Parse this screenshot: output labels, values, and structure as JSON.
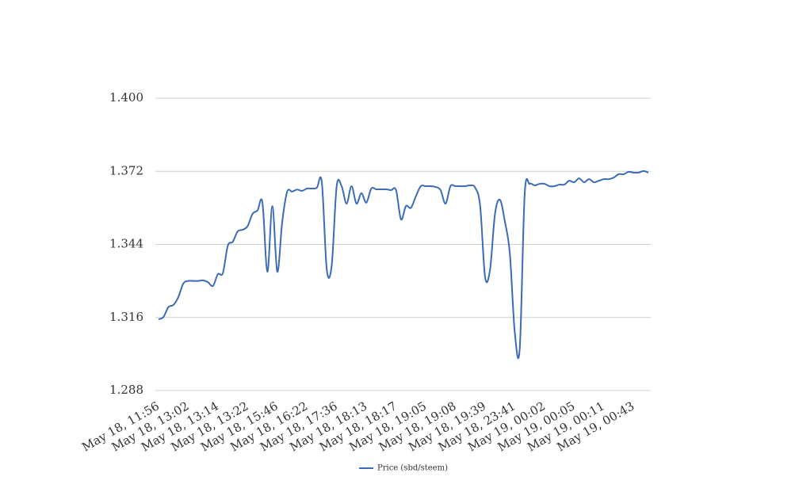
{
  "chart_data": {
    "type": "line",
    "categories": [
      "May 18, 11:56",
      null,
      null,
      null,
      null,
      null,
      "May 18, 13:02",
      null,
      null,
      null,
      null,
      null,
      "May 18, 13:14",
      null,
      null,
      null,
      null,
      null,
      "May 18, 13:22",
      null,
      null,
      null,
      null,
      null,
      "May 18, 15:46",
      null,
      null,
      null,
      null,
      null,
      "May 18, 16:22",
      null,
      null,
      null,
      null,
      null,
      "May 18, 17:36",
      null,
      null,
      null,
      null,
      null,
      "May 18, 18:13",
      null,
      null,
      null,
      null,
      null,
      "May 18, 18:17",
      null,
      null,
      null,
      null,
      null,
      "May 18, 19:05",
      null,
      null,
      null,
      null,
      null,
      "May 18, 19:08",
      null,
      null,
      null,
      null,
      null,
      "May 18, 19:39",
      null,
      null,
      null,
      null,
      null,
      "May 18, 23:41",
      null,
      null,
      null,
      null,
      null,
      "May 19, 00:02",
      null,
      null,
      null,
      null,
      null,
      "May 19, 00:05",
      null,
      null,
      null,
      null,
      null,
      "May 19, 00:11",
      null,
      null,
      null,
      null,
      null,
      "May 19, 00:43",
      null,
      null,
      null
    ],
    "series": [
      {
        "name": "Price (sbd/steem)",
        "color": "#3c6bb8",
        "values": [
          1.3153,
          1.3162,
          1.32,
          1.3208,
          1.3238,
          1.329,
          1.33,
          1.33,
          1.33,
          1.3302,
          1.3295,
          1.3281,
          1.3326,
          1.333,
          1.3435,
          1.345,
          1.349,
          1.3496,
          1.351,
          1.3557,
          1.357,
          1.36,
          1.3335,
          1.3587,
          1.3335,
          1.3527,
          1.3642,
          1.3642,
          1.365,
          1.3645,
          1.3654,
          1.3654,
          1.3657,
          1.3678,
          1.3344,
          1.336,
          1.3663,
          1.3663,
          1.3596,
          1.3663,
          1.3596,
          1.3636,
          1.36,
          1.3654,
          1.3651,
          1.3651,
          1.3651,
          1.3648,
          1.3648,
          1.3536,
          1.3587,
          1.358,
          1.3624,
          1.3663,
          1.3663,
          1.3663,
          1.366,
          1.3648,
          1.3596,
          1.3663,
          1.3663,
          1.3663,
          1.3663,
          1.3666,
          1.3657,
          1.3587,
          1.3314,
          1.3344,
          1.3557,
          1.3611,
          1.3527,
          1.3405,
          1.3102,
          1.3041,
          1.3633,
          1.3672,
          1.3666,
          1.3672,
          1.3672,
          1.3663,
          1.3663,
          1.3669,
          1.3669,
          1.3684,
          1.3678,
          1.3693,
          1.3678,
          1.369,
          1.3678,
          1.3684,
          1.369,
          1.369,
          1.3696,
          1.3709,
          1.3709,
          1.3718,
          1.3715,
          1.3715,
          1.3721,
          1.3715
        ]
      }
    ],
    "ylim": [
      1.288,
      1.4
    ],
    "yticks": [
      1.288,
      1.316,
      1.344,
      1.372,
      {
        "value": 1.4,
        "label": "1.400"
      }
    ],
    "grid": true
  }
}
